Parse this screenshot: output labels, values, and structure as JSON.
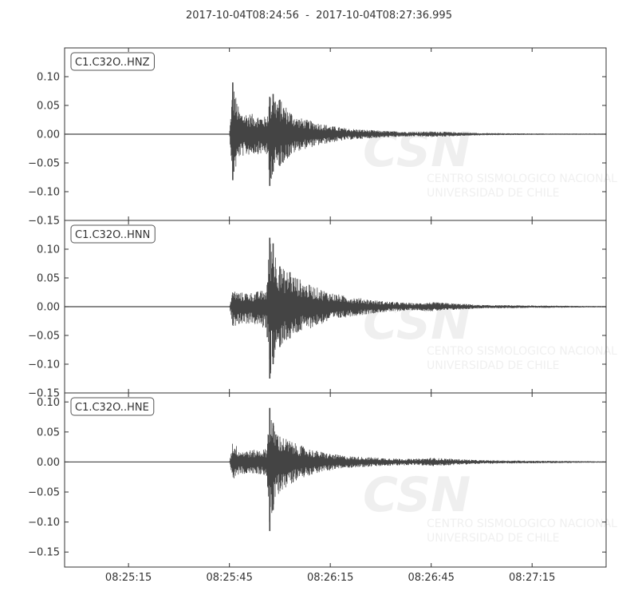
{
  "title": {
    "start": "2017-10-04T08:24:56",
    "separator": "  -  ",
    "end": "2017-10-04T08:27:36.995"
  },
  "watermark": {
    "logo_text": "CSN",
    "line1": "CENTRO SISMOLOGICO NACIONAL",
    "line2": "UNIVERSIDAD DE CHILE"
  },
  "colors": {
    "trace": "#444444",
    "axis": "#333333",
    "label_box": "#555555"
  },
  "chart_data": [
    {
      "type": "line",
      "label": "C1.C32O..HNZ",
      "xlim": [
        "08:24:56",
        "08:27:37"
      ],
      "ylim": [
        -0.15,
        0.15
      ],
      "yticks": [
        0.1,
        0.05,
        0.0,
        -0.05,
        -0.1,
        -0.15
      ],
      "ytick_labels": [
        "0.10",
        "0.05",
        "0.00",
        "−0.05",
        "−0.10",
        "−0.15"
      ],
      "envelope": {
        "x": [
          "08:24:56",
          "08:25:45",
          "08:25:46",
          "08:25:48",
          "08:25:52",
          "08:25:56",
          "08:25:57",
          "08:25:58",
          "08:26:00",
          "08:26:05",
          "08:26:10",
          "08:26:15",
          "08:26:20",
          "08:26:30",
          "08:26:40",
          "08:26:45",
          "08:27:00",
          "08:27:20",
          "08:27:37"
        ],
        "max": [
          0.0,
          0.0,
          0.09,
          0.04,
          0.035,
          0.03,
          0.065,
          0.07,
          0.06,
          0.03,
          0.022,
          0.015,
          0.01,
          0.006,
          0.004,
          0.005,
          0.002,
          0.001,
          0.001
        ],
        "min": [
          0.0,
          0.0,
          -0.08,
          -0.04,
          -0.035,
          -0.035,
          -0.09,
          -0.065,
          -0.055,
          -0.03,
          -0.022,
          -0.015,
          -0.01,
          -0.006,
          -0.004,
          -0.005,
          -0.002,
          -0.001,
          -0.001
        ]
      }
    },
    {
      "type": "line",
      "label": "C1.C32O..HNN",
      "xlim": [
        "08:24:56",
        "08:27:37"
      ],
      "ylim": [
        -0.15,
        0.15
      ],
      "yticks": [
        0.1,
        0.05,
        0.0,
        -0.05,
        -0.1,
        -0.15
      ],
      "ytick_labels": [
        "0.10",
        "0.05",
        "0.00",
        "−0.05",
        "−0.10",
        "−0.15"
      ],
      "envelope": {
        "x": [
          "08:24:56",
          "08:25:45",
          "08:25:46",
          "08:25:48",
          "08:25:52",
          "08:25:56",
          "08:25:57",
          "08:25:58",
          "08:26:00",
          "08:26:03",
          "08:26:08",
          "08:26:15",
          "08:26:20",
          "08:26:30",
          "08:26:40",
          "08:26:45",
          "08:27:00",
          "08:27:20",
          "08:27:37"
        ],
        "max": [
          0.0,
          0.0,
          0.03,
          0.025,
          0.025,
          0.03,
          0.12,
          0.11,
          0.07,
          0.06,
          0.04,
          0.025,
          0.018,
          0.01,
          0.006,
          0.008,
          0.003,
          0.002,
          0.001
        ],
        "min": [
          0.0,
          0.0,
          -0.035,
          -0.03,
          -0.03,
          -0.04,
          -0.125,
          -0.1,
          -0.07,
          -0.055,
          -0.04,
          -0.025,
          -0.018,
          -0.01,
          -0.006,
          -0.008,
          -0.003,
          -0.002,
          -0.001
        ]
      }
    },
    {
      "type": "line",
      "label": "C1.C32O..HNE",
      "xlim": [
        "08:24:56",
        "08:27:37"
      ],
      "ylim": [
        -0.175,
        0.115
      ],
      "yticks": [
        0.1,
        0.05,
        0.0,
        -0.05,
        -0.1,
        -0.15
      ],
      "ytick_labels": [
        "0.10",
        "0.05",
        "0.00",
        "−0.05",
        "−0.10",
        "−0.15"
      ],
      "xticks": [
        "08:25:15",
        "08:25:45",
        "08:26:15",
        "08:26:45",
        "08:27:15"
      ],
      "envelope": {
        "x": [
          "08:24:56",
          "08:25:45",
          "08:25:46",
          "08:25:48",
          "08:25:52",
          "08:25:56",
          "08:25:57",
          "08:25:58",
          "08:26:00",
          "08:26:05",
          "08:26:10",
          "08:26:15",
          "08:26:20",
          "08:26:30",
          "08:26:40",
          "08:26:45",
          "08:27:00",
          "08:27:20",
          "08:27:37"
        ],
        "max": [
          0.0,
          0.0,
          0.036,
          0.02,
          0.02,
          0.022,
          0.09,
          0.065,
          0.045,
          0.03,
          0.02,
          0.014,
          0.01,
          0.007,
          0.005,
          0.007,
          0.003,
          0.002,
          0.001
        ],
        "min": [
          0.0,
          0.0,
          -0.03,
          -0.02,
          -0.02,
          -0.022,
          -0.115,
          -0.08,
          -0.05,
          -0.03,
          -0.02,
          -0.014,
          -0.01,
          -0.007,
          -0.005,
          -0.007,
          -0.003,
          -0.002,
          -0.001
        ]
      }
    }
  ]
}
